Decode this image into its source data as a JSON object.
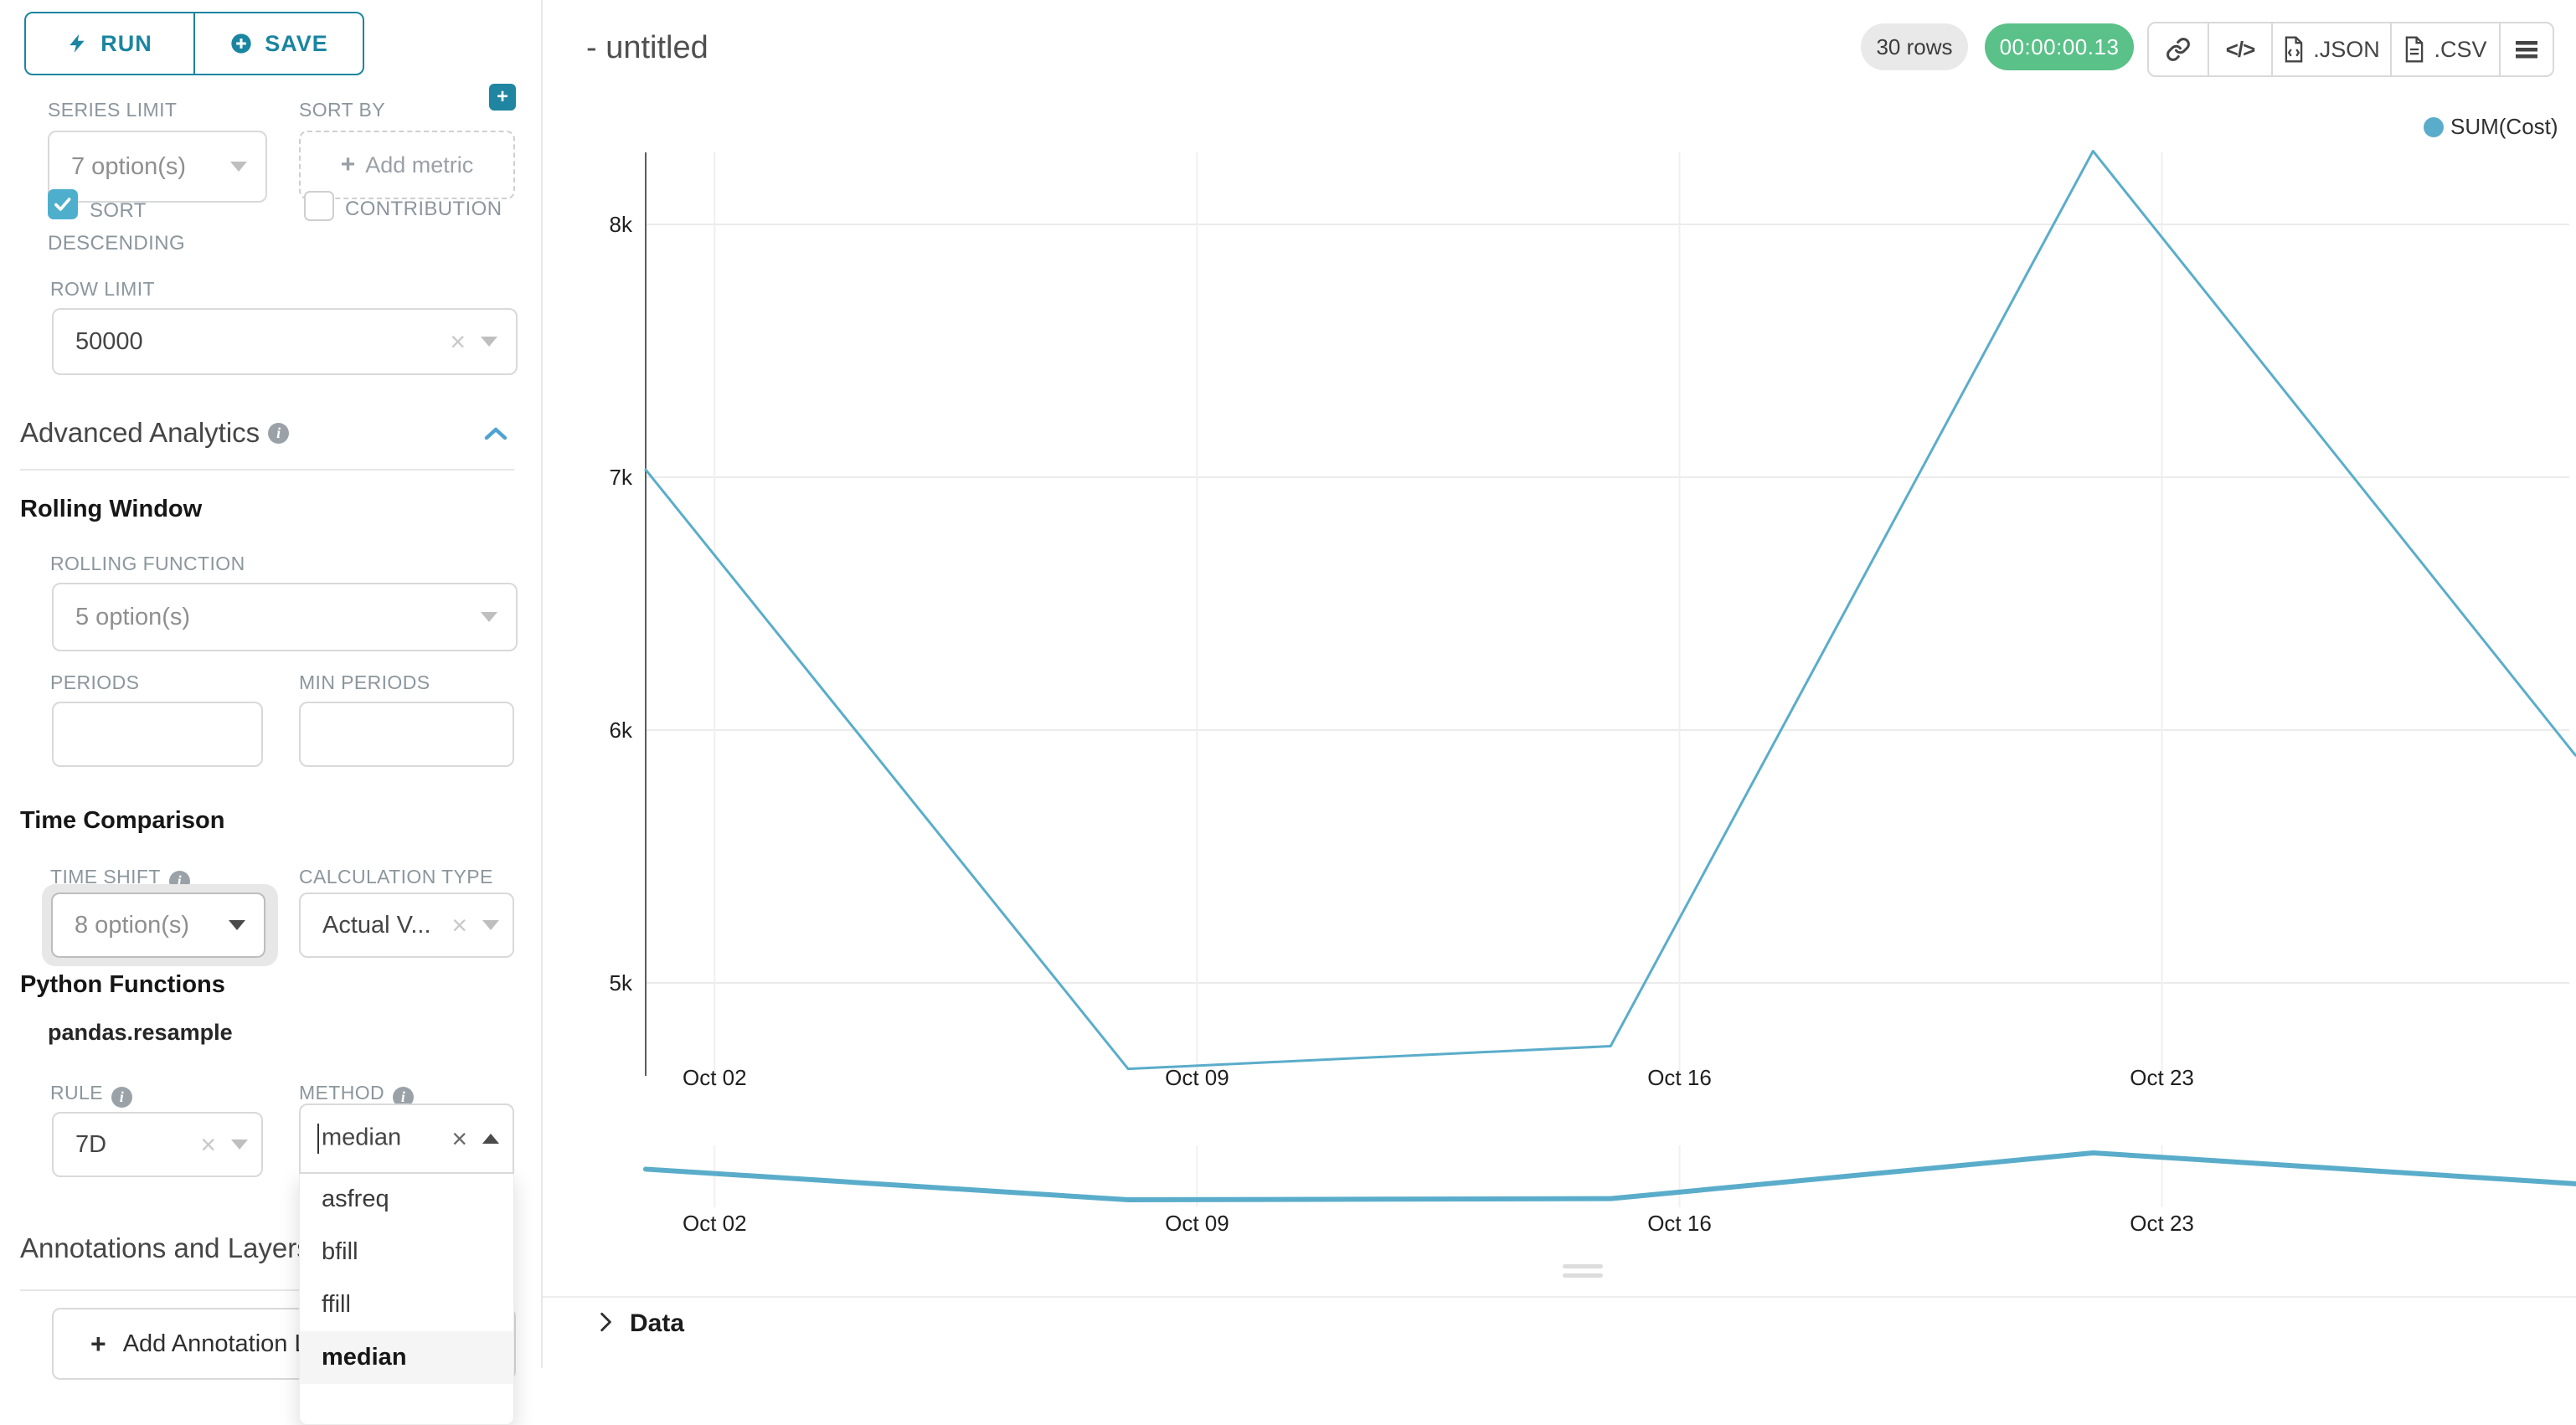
{
  "icons": {
    "info": "i",
    "plus": "+",
    "close": "×",
    "code": "</>"
  },
  "colors": {
    "accent": "#1a85a0",
    "checkbox": "#4eafcd",
    "section_chevron": "#4fa3d3",
    "line": "#5aadca",
    "timer_green": "#5ac189",
    "pill_gray": "#e9e9e9"
  },
  "toolbar": {
    "run": "RUN",
    "save": "SAVE"
  },
  "sidebar": {
    "series_limit_label": "SERIES LIMIT",
    "series_limit_value": "7 option(s)",
    "sort_by_label": "SORT BY",
    "sort_by_placeholder": "Add metric",
    "sort_descending_label": "SORT DESCENDING",
    "contribution_label": "CONTRIBUTION",
    "row_limit_label": "ROW LIMIT",
    "row_limit_value": "50000",
    "advanced_analytics_title": "Advanced Analytics",
    "rolling_window_title": "Rolling Window",
    "rolling_function_label": "ROLLING FUNCTION",
    "rolling_function_value": "5 option(s)",
    "periods_label": "PERIODS",
    "periods_value": "",
    "min_periods_label": "MIN PERIODS",
    "min_periods_value": "",
    "time_comparison_title": "Time Comparison",
    "time_shift_label": "TIME SHIFT",
    "time_shift_value": "8 option(s)",
    "calculation_type_label": "CALCULATION TYPE",
    "calculation_type_value": "Actual V...",
    "python_functions_title": "Python Functions",
    "python_functions_sub": "pandas.resample",
    "rule_label": "RULE",
    "rule_value": "7D",
    "method_label": "METHOD",
    "method_value": "median",
    "method_options": [
      "asfreq",
      "bfill",
      "ffill",
      "median"
    ],
    "method_selected": "median",
    "annotations_title": "Annotations and Layers",
    "add_annotation_label": "Add Annotation Layer"
  },
  "header": {
    "title": "- untitled",
    "rows_badge": "30 rows",
    "timer_badge": "00:00:00.13",
    "export_json": ".JSON",
    "export_csv": ".CSV"
  },
  "chart_data": {
    "type": "line",
    "title": "",
    "xlabel": "",
    "ylabel": "",
    "legend": [
      {
        "label": "SUM(Cost)",
        "color": "#5aadca"
      }
    ],
    "legend_position": "top-right",
    "grid": true,
    "ylim": [
      4600,
      8400
    ],
    "x_ticks": [
      {
        "day": 2,
        "label": "Oct 02"
      },
      {
        "day": 9,
        "label": "Oct 09"
      },
      {
        "day": 16,
        "label": "Oct 16"
      },
      {
        "day": 23,
        "label": "Oct 23"
      }
    ],
    "y_ticks": [
      {
        "value": 5000,
        "label": "5k"
      },
      {
        "value": 6000,
        "label": "6k"
      },
      {
        "value": 7000,
        "label": "7k"
      },
      {
        "value": 8000,
        "label": "8k"
      }
    ],
    "series": [
      {
        "name": "SUM(Cost)",
        "points": [
          {
            "date": "Oct 01",
            "day": 1,
            "value": 7030
          },
          {
            "date": "Oct 08",
            "day": 8,
            "value": 4660
          },
          {
            "date": "Oct 15",
            "day": 15,
            "value": 4750
          },
          {
            "date": "Oct 22",
            "day": 22,
            "value": 8290
          },
          {
            "date": "Oct 29",
            "day": 29,
            "value": 5900
          }
        ]
      }
    ],
    "has_minimap": true
  },
  "data_panel": {
    "label": "Data"
  }
}
